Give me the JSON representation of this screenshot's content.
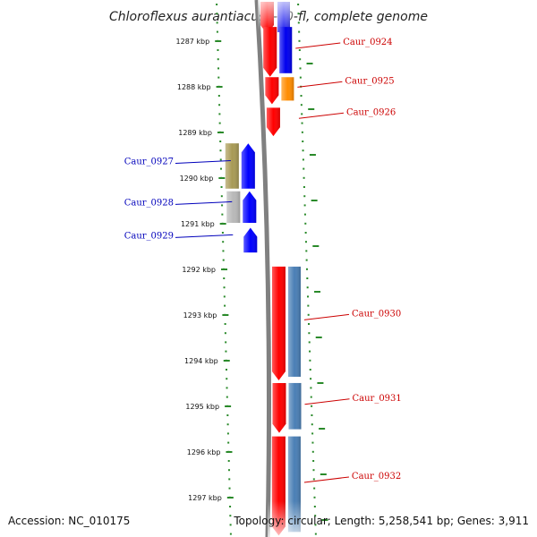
{
  "title": "Chloroflexus aurantiacus J-10-fl, complete genome",
  "accession": "Accession: NC_010175",
  "topology": "Topology: circular; Length: 5,258,541 bp; Genes: 3,911",
  "colors": {
    "forward_label": "#cc0000",
    "reverse_label": "#0000bb",
    "tick": "#2a8a2a",
    "backbone": "#808080"
  },
  "ruler": [
    {
      "kbp": 1287,
      "label": "1287 kbp"
    },
    {
      "kbp": 1288,
      "label": "1288 kbp"
    },
    {
      "kbp": 1289,
      "label": "1289 kbp"
    },
    {
      "kbp": 1290,
      "label": "1290 kbp"
    },
    {
      "kbp": 1291,
      "label": "1291 kbp"
    },
    {
      "kbp": 1292,
      "label": "1292 kbp"
    },
    {
      "kbp": 1293,
      "label": "1293 kbp"
    },
    {
      "kbp": 1294,
      "label": "1294 kbp"
    },
    {
      "kbp": 1295,
      "label": "1295 kbp"
    },
    {
      "kbp": 1296,
      "label": "1296 kbp"
    },
    {
      "kbp": 1297,
      "label": "1297 kbp"
    }
  ],
  "genes": [
    {
      "name": "Caur_0924",
      "strand": "+",
      "start_kbp": 1286.65,
      "end_kbp": 1287.8,
      "cog_color": "#0000ee"
    },
    {
      "name": "Caur_0925",
      "strand": "+",
      "start_kbp": 1287.75,
      "end_kbp": 1288.4,
      "cog_color": "#ff8c00"
    },
    {
      "name": "Caur_0926",
      "strand": "+",
      "start_kbp": 1288.42,
      "end_kbp": 1289.1,
      "cog_color": ""
    },
    {
      "name": "Caur_0927",
      "strand": "-",
      "start_kbp": 1289.2,
      "end_kbp": 1290.25,
      "cog_color": "#a89a55"
    },
    {
      "name": "Caur_0928",
      "strand": "-",
      "start_kbp": 1290.25,
      "end_kbp": 1291.0,
      "cog_color": "#b8b8b8"
    },
    {
      "name": "Caur_0929",
      "strand": "-",
      "start_kbp": 1291.05,
      "end_kbp": 1291.65,
      "cog_color": ""
    },
    {
      "name": "Caur_0930",
      "strand": "+",
      "start_kbp": 1291.9,
      "end_kbp": 1294.45,
      "cog_color": "#4a7fb5"
    },
    {
      "name": "Caur_0931",
      "strand": "+",
      "start_kbp": 1294.45,
      "end_kbp": 1295.6,
      "cog_color": "#4a7fb5"
    },
    {
      "name": "Caur_0932",
      "strand": "+",
      "start_kbp": 1295.62,
      "end_kbp": 1297.85,
      "cog_color": "#4a7fb5"
    }
  ]
}
